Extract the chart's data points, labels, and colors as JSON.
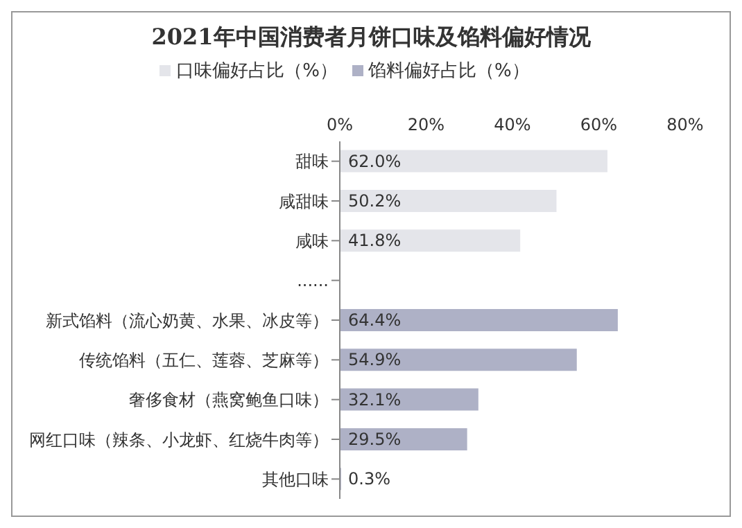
{
  "chart_data": {
    "type": "bar",
    "orientation": "horizontal",
    "stacked": true,
    "title": "2021年中国消费者月饼口味及馅料偏好情况",
    "categories": [
      "甜味",
      "咸甜味",
      "咸味",
      "......",
      "新式馅料（流心奶黄、水果、冰皮等）",
      "传统馅料（五仁、莲蓉、芝麻等）",
      "奢侈食材（燕窝鲍鱼口味）",
      "网红口味（辣条、小龙虾、红烧牛肉等）",
      "其他口味"
    ],
    "series": [
      {
        "name": "口味偏好占比（%）",
        "color": "#e4e5ea",
        "values": [
          62.0,
          50.2,
          41.8,
          null,
          null,
          null,
          null,
          null,
          null
        ],
        "value_labels": [
          "62.0%",
          "50.2%",
          "41.8%",
          null,
          null,
          null,
          null,
          null,
          null
        ]
      },
      {
        "name": "馅料偏好占比（%）",
        "color": "#aeb1c6",
        "values": [
          null,
          null,
          null,
          null,
          64.4,
          54.9,
          32.1,
          29.5,
          0.3
        ],
        "value_labels": [
          null,
          null,
          null,
          null,
          "64.4%",
          "54.9%",
          "32.1%",
          "29.5%",
          "0.3%"
        ]
      }
    ],
    "xlim": [
      0,
      80
    ],
    "xticks": [
      {
        "value": 0,
        "label": "0%"
      },
      {
        "value": 20,
        "label": "20%"
      },
      {
        "value": 40,
        "label": "40%"
      },
      {
        "value": 60,
        "label": "60%"
      },
      {
        "value": 80,
        "label": "80%"
      }
    ],
    "grid": false,
    "legend": "top"
  }
}
